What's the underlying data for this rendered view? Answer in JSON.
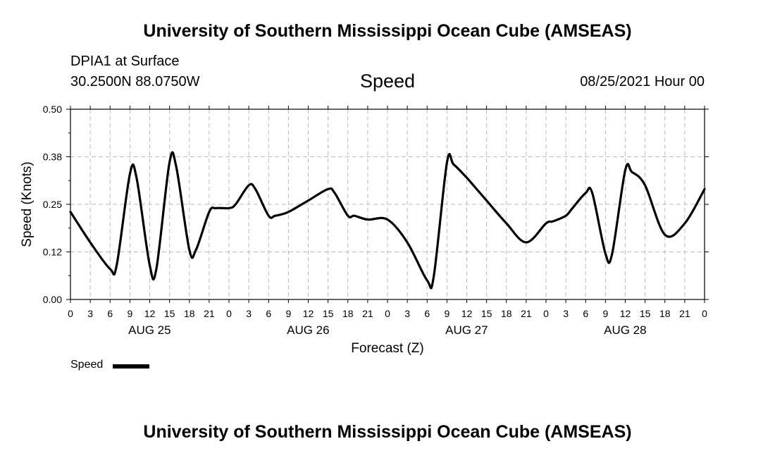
{
  "header": {
    "top_title": "University of Southern Mississippi Ocean Cube (AMSEAS)",
    "station": "DPIA1 at Surface",
    "coords": "30.2500N  88.0750W",
    "chart_title": "Speed",
    "datetime": "08/25/2021 Hour 00"
  },
  "footer": {
    "bottom_title": "University of Southern Mississippi Ocean Cube (AMSEAS)"
  },
  "legend": {
    "label": "Speed",
    "color": "#000000"
  },
  "chart_data": {
    "type": "line",
    "title": "Speed",
    "xlabel": "Forecast (Z)",
    "ylabel": "Speed (Knots)",
    "xlim": [
      0,
      96
    ],
    "ylim": [
      0,
      0.5
    ],
    "yticks": [
      "0.00",
      "0.12",
      "0.25",
      "0.38",
      "0.50"
    ],
    "xtick_labels": [
      "0",
      "3",
      "6",
      "9",
      "12",
      "15",
      "18",
      "21",
      "0",
      "3",
      "6",
      "9",
      "12",
      "15",
      "18",
      "21",
      "0",
      "3",
      "6",
      "9",
      "12",
      "15",
      "18",
      "21",
      "0",
      "3",
      "6",
      "9",
      "12",
      "15",
      "18",
      "21",
      "0"
    ],
    "day_labels": [
      "AUG 25",
      "AUG 26",
      "AUG 27",
      "AUG 28"
    ],
    "grid": true,
    "series": [
      {
        "name": "Speed",
        "color": "#000000",
        "x": [
          0,
          3,
          6,
          7,
          9,
          10,
          12,
          13,
          15,
          16,
          18,
          19,
          21,
          22,
          24,
          25,
          27,
          28,
          30,
          31,
          33,
          36,
          39,
          40,
          42,
          43,
          45,
          48,
          51,
          54,
          55,
          57,
          58,
          60,
          61,
          63,
          66,
          69,
          72,
          73,
          75,
          76,
          78,
          79,
          81,
          82,
          84,
          85,
          87,
          90,
          93,
          96
        ],
        "y": [
          0.23,
          0.15,
          0.08,
          0.09,
          0.33,
          0.32,
          0.09,
          0.08,
          0.36,
          0.35,
          0.13,
          0.13,
          0.23,
          0.24,
          0.24,
          0.25,
          0.3,
          0.29,
          0.22,
          0.22,
          0.23,
          0.26,
          0.29,
          0.28,
          0.22,
          0.22,
          0.21,
          0.21,
          0.15,
          0.05,
          0.06,
          0.36,
          0.355,
          0.32,
          0.3,
          0.26,
          0.2,
          0.15,
          0.2,
          0.205,
          0.22,
          0.24,
          0.28,
          0.28,
          0.12,
          0.12,
          0.34,
          0.335,
          0.3,
          0.17,
          0.2,
          0.29
        ]
      }
    ]
  }
}
